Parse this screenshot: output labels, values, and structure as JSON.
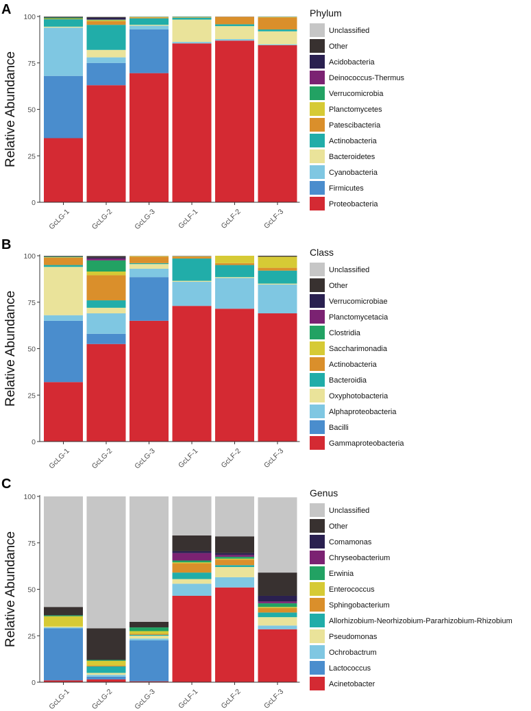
{
  "colors": {
    "c1": "#d42a33",
    "c2": "#4a8dcd",
    "c3": "#7fc7e2",
    "c4": "#eae39a",
    "c5": "#21ada9",
    "c6": "#da8f2b",
    "c7": "#d6ca35",
    "c8": "#22a263",
    "c9": "#7b2272",
    "c10": "#2a2050",
    "c11": "#383130",
    "c12": "#c6c6c6"
  },
  "chart_data": [
    {
      "panel_label": "A",
      "type": "bar",
      "stacked": true,
      "ylabel": "Relative Abundance",
      "ylim": [
        0,
        100
      ],
      "yticks": [
        "0",
        "25",
        "50",
        "75",
        "100"
      ],
      "categories": [
        "GcLG-1",
        "GcLG-2",
        "GcLG-3",
        "GcLF-1",
        "GcLF-2",
        "GcLF-3"
      ],
      "legend_title": "Phylum",
      "series": [
        {
          "name": "Proteobacteria",
          "color": "#d42a33",
          "values": [
            34.5,
            63,
            69.5,
            85.5,
            87,
            84.5
          ]
        },
        {
          "name": "Firmicutes",
          "color": "#4a8dcd",
          "values": [
            33.5,
            12,
            23.5,
            0,
            0,
            0
          ]
        },
        {
          "name": "Cyanobacteria",
          "color": "#7fc7e2",
          "values": [
            26,
            3,
            2,
            0.8,
            0.8,
            0.5
          ]
        },
        {
          "name": "Bacteroidetes",
          "color": "#eae39a",
          "values": [
            0.5,
            4,
            0.5,
            12,
            7,
            7
          ]
        },
        {
          "name": "Actinobacteria",
          "color": "#21ada9",
          "values": [
            4,
            13.5,
            3.5,
            1,
            1,
            1
          ]
        },
        {
          "name": "Patescibacteria",
          "color": "#da8f2b",
          "values": [
            0.2,
            2,
            0.5,
            0.2,
            4,
            6.5
          ]
        },
        {
          "name": "Planctomycetes",
          "color": "#d6ca35",
          "values": [
            0.2,
            0.5,
            0.2,
            0.1,
            0,
            0.2
          ]
        },
        {
          "name": "Verrucomicrobia",
          "color": "#22a263",
          "values": [
            0.5,
            0.3,
            0.1,
            0.2,
            0,
            0.1
          ]
        },
        {
          "name": "Deinococcus-Thermus",
          "color": "#7b2272",
          "values": [
            0,
            0.2,
            0,
            0,
            0,
            0
          ]
        },
        {
          "name": "Acidobacteria",
          "color": "#2a2050",
          "values": [
            0,
            0.8,
            0,
            0,
            0,
            0
          ]
        },
        {
          "name": "Other",
          "color": "#383130",
          "values": [
            0.5,
            0.4,
            0.1,
            0.1,
            0.1,
            0.1
          ]
        },
        {
          "name": "Unclassified",
          "color": "#c6c6c6",
          "values": [
            0.1,
            0.3,
            0.1,
            0.1,
            0.1,
            0.1
          ]
        }
      ]
    },
    {
      "panel_label": "B",
      "type": "bar",
      "stacked": true,
      "ylabel": "Relative Abundance",
      "ylim": [
        0,
        100
      ],
      "yticks": [
        "0",
        "25",
        "50",
        "75",
        "100"
      ],
      "categories": [
        "GcLG-1",
        "GcLG-2",
        "GcLG-3",
        "GcLF-1",
        "GcLF-2",
        "GcLF-3"
      ],
      "legend_title": "Class",
      "series": [
        {
          "name": "Gammaproteobacteria",
          "color": "#d42a33",
          "values": [
            32,
            52.5,
            65,
            73,
            71.5,
            69
          ]
        },
        {
          "name": "Bacilli",
          "color": "#4a8dcd",
          "values": [
            33,
            5.5,
            23.5,
            0,
            0,
            0
          ]
        },
        {
          "name": "Alphaproteobacteria",
          "color": "#7fc7e2",
          "values": [
            3,
            11,
            4.5,
            13,
            16.5,
            15.5
          ]
        },
        {
          "name": "Oxyphotobacteria",
          "color": "#eae39a",
          "values": [
            26,
            3,
            2.5,
            0.5,
            0.5,
            0.5
          ]
        },
        {
          "name": "Bacteroidia",
          "color": "#21ada9",
          "values": [
            1,
            4,
            0.5,
            12,
            6.5,
            7
          ]
        },
        {
          "name": "Actinobacteria",
          "color": "#da8f2b",
          "values": [
            4,
            13.5,
            3.5,
            1,
            1,
            1.5
          ]
        },
        {
          "name": "Saccharimonadia",
          "color": "#d6ca35",
          "values": [
            0.2,
            2,
            0.3,
            0.2,
            4,
            6
          ]
        },
        {
          "name": "Clostridia",
          "color": "#22a263",
          "values": [
            0.3,
            6,
            0,
            0,
            0,
            0
          ]
        },
        {
          "name": "Planctomycetacia",
          "color": "#7b2272",
          "values": [
            0,
            1,
            0,
            0,
            0,
            0
          ]
        },
        {
          "name": "Verrucomicrobiae",
          "color": "#2a2050",
          "values": [
            0,
            0.5,
            0,
            0,
            0,
            0
          ]
        },
        {
          "name": "Other",
          "color": "#383130",
          "values": [
            0.4,
            0.8,
            0.1,
            0.2,
            0,
            0.5
          ]
        },
        {
          "name": "Unclassified",
          "color": "#c6c6c6",
          "values": [
            0.1,
            0.2,
            0.1,
            0.1,
            0,
            0
          ]
        }
      ]
    },
    {
      "panel_label": "C",
      "type": "bar",
      "stacked": true,
      "ylabel": "Relative Abundance",
      "ylim": [
        0,
        100
      ],
      "yticks": [
        "0",
        "25",
        "50",
        "75",
        "100"
      ],
      "categories": [
        "GcLG-1",
        "GcLG-2",
        "GcLG-3",
        "GcLF-1",
        "GcLF-2",
        "GcLF-3"
      ],
      "legend_title": "Genus",
      "series": [
        {
          "name": "Acinetobacter",
          "color": "#d42a33",
          "values": [
            1,
            1.5,
            0.5,
            46.5,
            51,
            28.5
          ]
        },
        {
          "name": "Lactococcus",
          "color": "#4a8dcd",
          "values": [
            28,
            1.5,
            22,
            0,
            0,
            0
          ]
        },
        {
          "name": "Ochrobactrum",
          "color": "#7fc7e2",
          "values": [
            0.5,
            1,
            1,
            6.5,
            5.5,
            2
          ]
        },
        {
          "name": "Pseudomonas",
          "color": "#eae39a",
          "values": [
            0.5,
            1,
            1.5,
            2.5,
            5.5,
            4.5
          ]
        },
        {
          "name": "Allorhizobium-Neorhizobium-Pararhizobium-Rhizobium",
          "color": "#21ada9",
          "values": [
            0,
            3.5,
            0.5,
            3.5,
            1,
            2.5
          ]
        },
        {
          "name": "Sphingobacterium",
          "color": "#da8f2b",
          "values": [
            0,
            0.5,
            0.5,
            5,
            3,
            2.5
          ]
        },
        {
          "name": "Enterococcus",
          "color": "#d6ca35",
          "values": [
            5.5,
            2.5,
            1.5,
            0.5,
            0.5,
            0.5
          ]
        },
        {
          "name": "Erwinia",
          "color": "#22a263",
          "values": [
            0.5,
            0.5,
            2,
            1,
            1,
            2
          ]
        },
        {
          "name": "Chryseobacterium",
          "color": "#7b2272",
          "values": [
            0,
            0,
            0,
            4,
            1,
            1
          ]
        },
        {
          "name": "Comamonas",
          "color": "#2a2050",
          "values": [
            0,
            0,
            0,
            1,
            1,
            3
          ]
        },
        {
          "name": "Other",
          "color": "#383130",
          "values": [
            4.5,
            17,
            3,
            8.5,
            9,
            12.5
          ]
        },
        {
          "name": "Unclassified",
          "color": "#c6c6c6",
          "values": [
            59.5,
            71,
            67.5,
            21,
            21.5,
            40.5
          ]
        }
      ]
    }
  ]
}
